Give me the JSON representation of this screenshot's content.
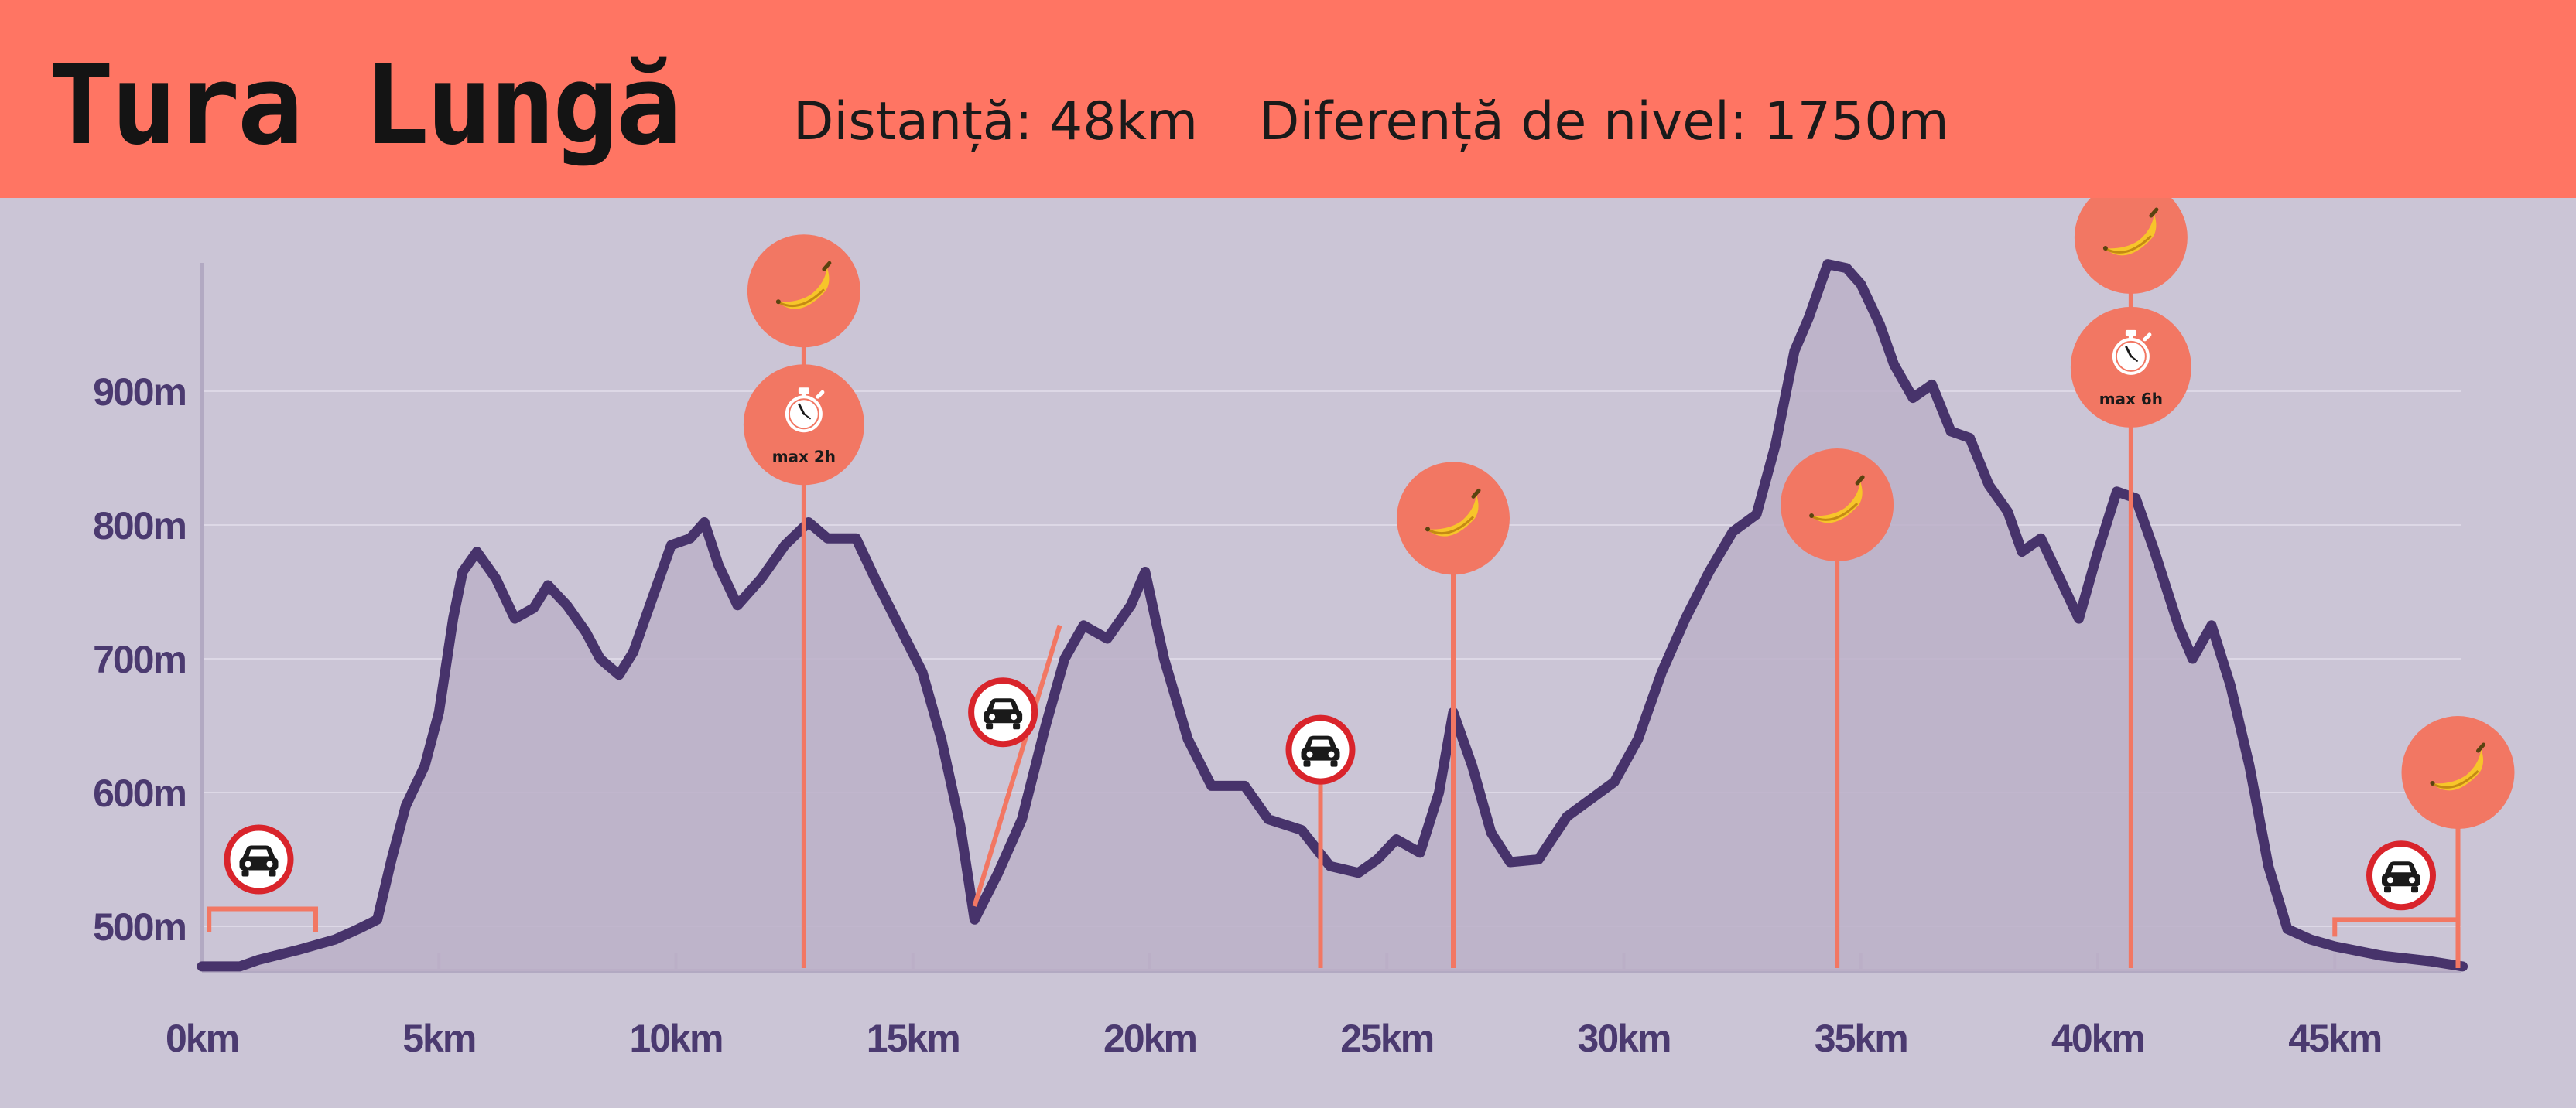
{
  "header": {
    "title": "Tura Lungă",
    "distance": "Distanță: 48km",
    "elevation_gain": "Diferență de nivel: 1750m"
  },
  "colors": {
    "header_bg": "#ff7563",
    "background": "#cbc5d6",
    "profile_line": "#47336b",
    "profile_fill": "#bcb0c8",
    "marker": "#f27763",
    "no_car_ring": "#d9242b",
    "tick_text": "#4b3a70"
  },
  "chart_data": {
    "type": "area",
    "x_unit": "km",
    "y_unit": "m",
    "xlim": [
      0,
      48
    ],
    "ylim": [
      470,
      1000
    ],
    "grid": true,
    "x_ticks": [
      "0km",
      "5km",
      "10km",
      "15km",
      "20km",
      "25km",
      "30km",
      "35km",
      "40km",
      "45km"
    ],
    "x_tick_values": [
      0,
      5,
      10,
      15,
      20,
      25,
      30,
      35,
      40,
      45
    ],
    "y_ticks": [
      "500m",
      "600m",
      "700m",
      "800m",
      "900m"
    ],
    "y_tick_values": [
      500,
      600,
      700,
      800,
      900
    ],
    "profile": [
      [
        0,
        470
      ],
      [
        0.8,
        470
      ],
      [
        1.2,
        475
      ],
      [
        2,
        482
      ],
      [
        2.8,
        490
      ],
      [
        3.3,
        498
      ],
      [
        3.7,
        505
      ],
      [
        4.0,
        550
      ],
      [
        4.3,
        590
      ],
      [
        4.7,
        620
      ],
      [
        5.0,
        660
      ],
      [
        5.3,
        730
      ],
      [
        5.5,
        765
      ],
      [
        5.8,
        780
      ],
      [
        6.2,
        760
      ],
      [
        6.6,
        730
      ],
      [
        7.0,
        738
      ],
      [
        7.3,
        755
      ],
      [
        7.7,
        740
      ],
      [
        8.1,
        720
      ],
      [
        8.4,
        700
      ],
      [
        8.8,
        688
      ],
      [
        9.1,
        705
      ],
      [
        9.5,
        745
      ],
      [
        9.9,
        785
      ],
      [
        10.3,
        790
      ],
      [
        10.6,
        802
      ],
      [
        10.9,
        770
      ],
      [
        11.3,
        740
      ],
      [
        11.8,
        760
      ],
      [
        12.3,
        785
      ],
      [
        12.8,
        802
      ],
      [
        13.2,
        790
      ],
      [
        13.8,
        790
      ],
      [
        14.2,
        760
      ],
      [
        14.7,
        725
      ],
      [
        15.2,
        690
      ],
      [
        15.6,
        640
      ],
      [
        16.0,
        575
      ],
      [
        16.3,
        505
      ],
      [
        16.8,
        540
      ],
      [
        17.3,
        580
      ],
      [
        17.8,
        650
      ],
      [
        18.2,
        700
      ],
      [
        18.6,
        725
      ],
      [
        19.1,
        715
      ],
      [
        19.6,
        740
      ],
      [
        19.9,
        765
      ],
      [
        20.3,
        700
      ],
      [
        20.8,
        640
      ],
      [
        21.3,
        605
      ],
      [
        22.0,
        605
      ],
      [
        22.5,
        580
      ],
      [
        23.2,
        572
      ],
      [
        23.8,
        545
      ],
      [
        24.4,
        540
      ],
      [
        24.8,
        550
      ],
      [
        25.2,
        565
      ],
      [
        25.7,
        555
      ],
      [
        26.1,
        600
      ],
      [
        26.4,
        660
      ],
      [
        26.8,
        620
      ],
      [
        27.2,
        570
      ],
      [
        27.6,
        548
      ],
      [
        28.2,
        550
      ],
      [
        28.8,
        582
      ],
      [
        29.3,
        595
      ],
      [
        29.8,
        608
      ],
      [
        30.3,
        640
      ],
      [
        30.8,
        690
      ],
      [
        31.3,
        730
      ],
      [
        31.8,
        765
      ],
      [
        32.3,
        795
      ],
      [
        32.8,
        808
      ],
      [
        33.2,
        860
      ],
      [
        33.6,
        930
      ],
      [
        33.9,
        955
      ],
      [
        34.3,
        995
      ],
      [
        34.7,
        992
      ],
      [
        35.0,
        980
      ],
      [
        35.4,
        950
      ],
      [
        35.7,
        920
      ],
      [
        36.1,
        895
      ],
      [
        36.5,
        905
      ],
      [
        36.9,
        870
      ],
      [
        37.3,
        865
      ],
      [
        37.7,
        830
      ],
      [
        38.1,
        810
      ],
      [
        38.4,
        780
      ],
      [
        38.8,
        790
      ],
      [
        39.2,
        760
      ],
      [
        39.6,
        730
      ],
      [
        40.0,
        780
      ],
      [
        40.4,
        825
      ],
      [
        40.8,
        820
      ],
      [
        41.2,
        780
      ],
      [
        41.7,
        725
      ],
      [
        42.0,
        700
      ],
      [
        42.4,
        725
      ],
      [
        42.8,
        680
      ],
      [
        43.2,
        620
      ],
      [
        43.6,
        545
      ],
      [
        44.0,
        498
      ],
      [
        44.5,
        490
      ],
      [
        45.0,
        485
      ],
      [
        46.0,
        478
      ],
      [
        47.0,
        474
      ],
      [
        47.7,
        470
      ]
    ],
    "markers": [
      {
        "type": "no-car",
        "km_start": 0.15,
        "km_end": 2.4,
        "icon_km": 1.2,
        "icon_alt": 550
      },
      {
        "type": "feed",
        "km": 12.7,
        "icon_alt": 975
      },
      {
        "type": "time-limit",
        "km": 12.7,
        "label": "max 2h",
        "icon_alt": 875
      },
      {
        "type": "no-car",
        "km_start": 16.3,
        "km_end": 18.1,
        "icon_km": 16.9,
        "icon_alt": 660
      },
      {
        "type": "no-car",
        "km": 23.6,
        "icon_alt": 632
      },
      {
        "type": "feed",
        "km": 26.4,
        "icon_alt": 805
      },
      {
        "type": "feed",
        "km": 34.5,
        "icon_alt": 815
      },
      {
        "type": "feed",
        "km": 40.7,
        "icon_alt": 1015
      },
      {
        "type": "time-limit",
        "km": 40.7,
        "label": "max 6h",
        "icon_alt": 918
      },
      {
        "type": "no-car",
        "km_start": 45.0,
        "km_end": 47.6,
        "icon_km": 46.4,
        "icon_alt": 538
      },
      {
        "type": "feed",
        "km": 47.6,
        "icon_alt": 615
      }
    ]
  }
}
